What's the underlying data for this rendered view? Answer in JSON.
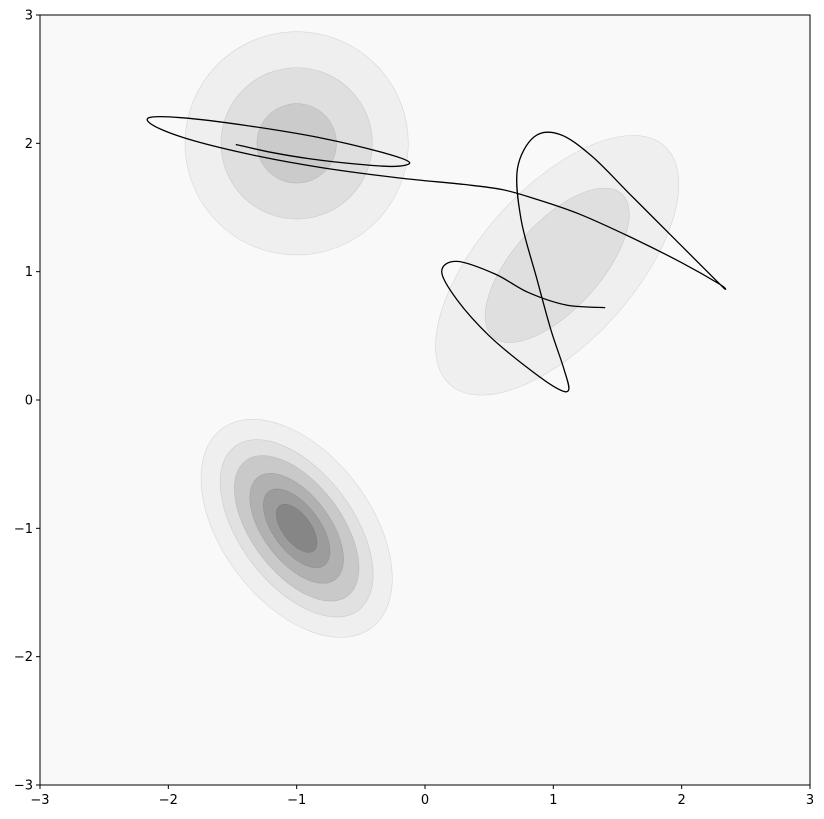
{
  "chart_data": {
    "type": "contour",
    "title": "",
    "xlabel": "",
    "ylabel": "",
    "xlim": [
      -3,
      3
    ],
    "ylim": [
      -3,
      3
    ],
    "grid": false,
    "legend": "none",
    "colormap": "greys",
    "x_ticks": [
      -3,
      -2,
      -1,
      0,
      1,
      2,
      3
    ],
    "y_ticks": [
      -3,
      -2,
      -1,
      0,
      1,
      2,
      3
    ],
    "x_tick_labels": [
      "−3",
      "−2",
      "−1",
      "0",
      "1",
      "2",
      "3"
    ],
    "y_tick_labels": [
      "−3",
      "−2",
      "−1",
      "0",
      "1",
      "2",
      "3"
    ],
    "background_fill": "#f9f9f9",
    "gaussian_components": [
      {
        "center": [
          -1.0,
          2.0
        ],
        "rings": [
          {
            "rx": 0.87,
            "ry": 0.87,
            "angle_deg": 0,
            "fill": "#efefef"
          },
          {
            "rx": 0.59,
            "ry": 0.59,
            "angle_deg": 0,
            "fill": "#dfdfdf"
          },
          {
            "rx": 0.31,
            "ry": 0.31,
            "angle_deg": 0,
            "fill": "#cbcbcb"
          }
        ]
      },
      {
        "center": [
          1.03,
          1.05
        ],
        "rings": [
          {
            "rx": 1.25,
            "ry": 0.6,
            "angle_deg": 48,
            "fill": "#efefef"
          },
          {
            "rx": 0.75,
            "ry": 0.34,
            "angle_deg": 48,
            "fill": "#dfdfdf"
          }
        ]
      },
      {
        "center": [
          -1.0,
          -1.0
        ],
        "rings": [
          {
            "rx": 0.97,
            "ry": 0.58,
            "angle_deg": -53,
            "fill": "#efefef"
          },
          {
            "rx": 0.8,
            "ry": 0.44,
            "angle_deg": -53,
            "fill": "#e1e1e1"
          },
          {
            "rx": 0.66,
            "ry": 0.35,
            "angle_deg": -53,
            "fill": "#c9c9c9"
          },
          {
            "rx": 0.5,
            "ry": 0.26,
            "angle_deg": -53,
            "fill": "#b1b1b1"
          },
          {
            "rx": 0.36,
            "ry": 0.18,
            "angle_deg": -53,
            "fill": "#9c9c9c"
          },
          {
            "rx": 0.22,
            "ry": 0.11,
            "angle_deg": -53,
            "fill": "#868686"
          }
        ]
      }
    ],
    "trajectory": [
      [
        -1.47,
        1.99
      ],
      [
        -1.2,
        1.93
      ],
      [
        -0.9,
        1.88
      ],
      [
        -0.55,
        1.84
      ],
      [
        -0.25,
        1.82
      ],
      [
        -0.12,
        1.85
      ],
      [
        -0.3,
        1.92
      ],
      [
        -0.8,
        2.04
      ],
      [
        -1.4,
        2.14
      ],
      [
        -1.9,
        2.2
      ],
      [
        -2.15,
        2.2
      ],
      [
        -2.1,
        2.13
      ],
      [
        -1.8,
        2.02
      ],
      [
        -1.3,
        1.9
      ],
      [
        -0.8,
        1.81
      ],
      [
        -0.2,
        1.73
      ],
      [
        0.3,
        1.68
      ],
      [
        0.6,
        1.64
      ],
      [
        0.85,
        1.57
      ],
      [
        1.2,
        1.45
      ],
      [
        1.6,
        1.27
      ],
      [
        2.0,
        1.07
      ],
      [
        2.3,
        0.9
      ],
      [
        2.33,
        0.87
      ],
      [
        2.2,
        1.0
      ],
      [
        1.9,
        1.3
      ],
      [
        1.6,
        1.6
      ],
      [
        1.3,
        1.9
      ],
      [
        1.05,
        2.07
      ],
      [
        0.85,
        2.05
      ],
      [
        0.72,
        1.8
      ],
      [
        0.75,
        1.4
      ],
      [
        0.87,
        0.95
      ],
      [
        0.98,
        0.55
      ],
      [
        1.08,
        0.25
      ],
      [
        1.12,
        0.08
      ],
      [
        1.03,
        0.09
      ],
      [
        0.8,
        0.25
      ],
      [
        0.5,
        0.5
      ],
      [
        0.25,
        0.78
      ],
      [
        0.13,
        1.0
      ],
      [
        0.25,
        1.08
      ],
      [
        0.55,
        0.98
      ],
      [
        0.8,
        0.84
      ],
      [
        1.1,
        0.74
      ],
      [
        1.4,
        0.72
      ]
    ]
  }
}
